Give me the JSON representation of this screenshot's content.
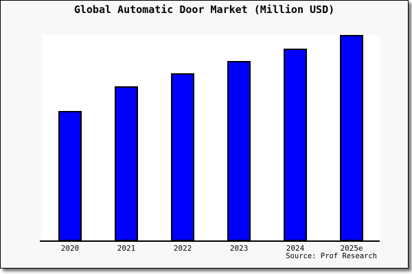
{
  "header": {
    "title": "Global Automatic Door Market (Million USD)"
  },
  "source": {
    "label": "Source: Prof Research"
  },
  "colors": {
    "bar_fill": "#0000FF",
    "bar_border": "#000000",
    "card_background": "#f8f8f8",
    "plot_background": "#ffffff",
    "axis": "#000000",
    "text": "#000000"
  },
  "chart_data": {
    "type": "bar",
    "title": "Global Automatic Door Market (Million USD)",
    "categories": [
      "2020",
      "2021",
      "2022",
      "2023",
      "2024",
      "2025e"
    ],
    "values_percent_of_max": [
      63,
      75,
      81.5,
      87.5,
      93.5,
      100
    ],
    "value_axis_note": "No y-axis ticks or gridlines shown; values estimated as percent of tallest (2025e) bar",
    "xlabel": "",
    "ylabel": "",
    "ylim": [
      0,
      100
    ],
    "grid": false,
    "legend": null,
    "bar_color": "#0000FF",
    "bar_border_color": "#000000"
  }
}
